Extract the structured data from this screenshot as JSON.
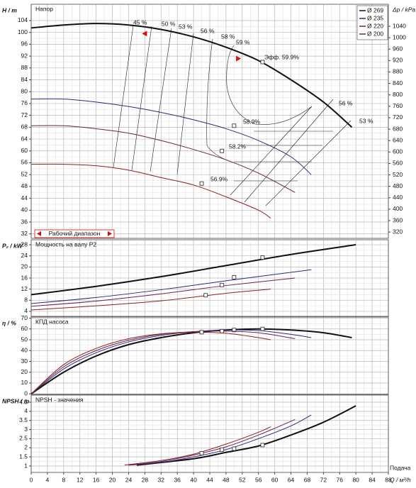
{
  "x_axis": {
    "xlim": [
      0,
      88
    ],
    "xticks": [
      0,
      4,
      8,
      12,
      16,
      20,
      24,
      28,
      32,
      36,
      40,
      44,
      48,
      52,
      56,
      60,
      64,
      68,
      72,
      76,
      80,
      84,
      88
    ],
    "label": "Q / м³/h",
    "caption": "Подача"
  },
  "chart_data": [
    {
      "type": "line",
      "title": "Напор",
      "ylabel": "H / m",
      "y2label": "Δp / kPa",
      "ylim": [
        30.5,
        109.5
      ],
      "yticks": [
        32,
        36,
        40,
        44,
        48,
        52,
        56,
        60,
        64,
        68,
        72,
        76,
        80,
        84,
        88,
        92,
        96,
        100,
        104
      ],
      "y2lim": [
        298,
        1117
      ],
      "y2ticks": [
        320,
        360,
        400,
        440,
        480,
        520,
        560,
        600,
        640,
        680,
        720,
        760,
        800,
        840,
        880,
        920,
        960,
        1000,
        1040
      ],
      "grid": true,
      "legend": "upper right",
      "range_label": "Рабочий диапазон",
      "operating_range": [
        28,
        51
      ],
      "annotations": [
        "45 %",
        "50 %",
        "53 %",
        "56 %",
        "58 %",
        "59 %",
        "Эфф.  59.9%",
        "56 %",
        "53 %",
        "58.9%",
        "58.2%",
        "56.9%"
      ],
      "series": [
        {
          "name": "Ø 269",
          "color": "#111111",
          "x": [
            0,
            8,
            16,
            24,
            32,
            40,
            48,
            56,
            64,
            72,
            79
          ],
          "values": [
            101.5,
            102.5,
            103,
            102.5,
            101,
            98.5,
            95,
            90.5,
            84,
            76.5,
            68
          ],
          "point": {
            "x": 57,
            "y": 90
          }
        },
        {
          "name": "Ø 235",
          "color": "#2b2b7a",
          "x": [
            0,
            8,
            16,
            24,
            32,
            40,
            48,
            56,
            64,
            69
          ],
          "values": [
            77.5,
            77.5,
            76.5,
            75,
            73,
            70.5,
            67.5,
            63.5,
            58,
            52
          ],
          "point": {
            "x": 50,
            "y": 68.5
          }
        },
        {
          "name": "Ø 220",
          "color": "#6b2050",
          "x": [
            0,
            8,
            16,
            24,
            32,
            40,
            48,
            56,
            65
          ],
          "values": [
            68.5,
            68.5,
            67.5,
            66,
            63.5,
            60.5,
            57,
            52.5,
            46
          ],
          "point": {
            "x": 47,
            "y": 60
          }
        },
        {
          "name": "Ø 200",
          "color": "#8b2020",
          "x": [
            0,
            8,
            16,
            24,
            32,
            40,
            48,
            56,
            59
          ],
          "values": [
            55.5,
            55.5,
            55,
            53.5,
            51,
            48.5,
            44.5,
            40,
            37.3
          ],
          "point": {
            "x": 42,
            "y": 49
          }
        }
      ]
    },
    {
      "type": "line",
      "title": "Мощность на валу P2",
      "ylabel": "P₂ / kW",
      "ylim": [
        2.2,
        29.8
      ],
      "yticks": [
        4,
        8,
        12,
        16,
        20,
        24,
        28
      ],
      "grid": true,
      "series": [
        {
          "color": "#111111",
          "x": [
            0,
            16,
            32,
            48,
            64,
            80
          ],
          "values": [
            10,
            13,
            16.5,
            20.5,
            24.5,
            28
          ],
          "point": {
            "x": 57,
            "y": 23.4
          }
        },
        {
          "color": "#2b2b7a",
          "x": [
            0,
            16,
            32,
            48,
            69
          ],
          "values": [
            6.8,
            9,
            11.8,
            15,
            19
          ],
          "point": {
            "x": 50,
            "y": 16.3
          }
        },
        {
          "color": "#6b2050",
          "x": [
            0,
            16,
            32,
            48,
            65
          ],
          "values": [
            5.8,
            7.7,
            10.3,
            13.3,
            16
          ],
          "point": {
            "x": 47,
            "y": 13.5
          }
        },
        {
          "color": "#8b2020",
          "x": [
            0,
            16,
            32,
            48,
            59
          ],
          "values": [
            4.5,
            6,
            7.8,
            10.5,
            12
          ],
          "point": {
            "x": 43,
            "y": 9.8
          }
        }
      ]
    },
    {
      "type": "line",
      "title": "КПД насоса",
      "ylabel": "η / %",
      "ylim": [
        -0.5,
        71
      ],
      "yticks": [
        0,
        10,
        20,
        30,
        40,
        50,
        60,
        70
      ],
      "grid": true,
      "series": [
        {
          "color": "#111111",
          "x": [
            0,
            8,
            16,
            24,
            32,
            40,
            48,
            56,
            64,
            72,
            79
          ],
          "values": [
            0,
            20,
            35,
            45.5,
            52,
            56.5,
            59,
            60,
            59,
            56.5,
            52
          ],
          "point": {
            "x": 57,
            "y": 60
          }
        },
        {
          "color": "#2b2b7a",
          "x": [
            0,
            8,
            16,
            24,
            32,
            40,
            48,
            56,
            64,
            69
          ],
          "values": [
            0,
            23,
            38,
            48,
            54,
            57.5,
            59,
            58.5,
            55,
            52
          ],
          "point": {
            "x": 50,
            "y": 59
          }
        },
        {
          "color": "#6b2050",
          "x": [
            0,
            8,
            16,
            24,
            32,
            40,
            48,
            56,
            65
          ],
          "values": [
            0,
            25,
            40,
            49.5,
            55,
            57.5,
            58,
            56.5,
            51
          ],
          "point": {
            "x": 47,
            "y": 58
          }
        },
        {
          "color": "#8b2020",
          "x": [
            0,
            8,
            16,
            24,
            32,
            40,
            48,
            56,
            59
          ],
          "values": [
            0,
            27,
            42,
            51,
            55.5,
            57,
            56,
            52,
            50
          ],
          "point": {
            "x": 42,
            "y": 57
          }
        }
      ]
    },
    {
      "type": "line",
      "title": "NPSH - значения",
      "ylabel": "NPSH / m",
      "ylim": [
        0.65,
        4.89
      ],
      "yticks": [
        1,
        1.5,
        2,
        2.5,
        3,
        3.5,
        4,
        4.5
      ],
      "grid": true,
      "series": [
        {
          "color": "#111111",
          "x": [
            26,
            40,
            48,
            56,
            64,
            72,
            80
          ],
          "values": [
            1.05,
            1.4,
            1.75,
            2.1,
            2.7,
            3.4,
            4.3
          ],
          "point": {
            "x": 57,
            "y": 2.15
          }
        },
        {
          "color": "#2b2b7a",
          "x": [
            24,
            32,
            40,
            48,
            56,
            64,
            69
          ],
          "values": [
            1.05,
            1.2,
            1.5,
            1.9,
            2.5,
            3.2,
            3.8
          ],
          "point": {
            "x": 50,
            "y": 1.95
          }
        },
        {
          "color": "#6b2050",
          "x": [
            24,
            32,
            40,
            48,
            56,
            65
          ],
          "values": [
            1.05,
            1.25,
            1.6,
            2.05,
            2.7,
            3.55
          ],
          "point": {
            "x": 47,
            "y": 1.9
          }
        },
        {
          "color": "#8b2020",
          "x": [
            23,
            32,
            40,
            48,
            56,
            59
          ],
          "values": [
            1.05,
            1.3,
            1.65,
            2.2,
            2.85,
            3.15
          ],
          "point": {
            "x": 42,
            "y": 1.7
          }
        }
      ]
    }
  ]
}
